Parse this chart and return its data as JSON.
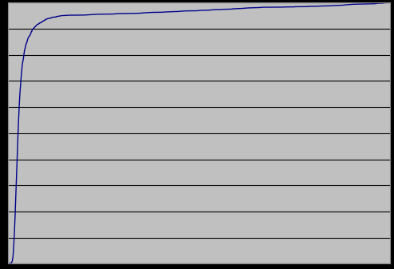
{
  "title": "",
  "xlabel": "",
  "ylabel": "",
  "xlim": [
    0,
    500
  ],
  "ylim": [
    0,
    1.0
  ],
  "background_color": "#c0c0c0",
  "figure_background": "#000000",
  "line_color": "#00008b",
  "line_width": 1.0,
  "grid_color": "#000000",
  "grid_linewidth": 0.8,
  "yticks": [
    0.0,
    0.1,
    0.2,
    0.3,
    0.4,
    0.5,
    0.6,
    0.7,
    0.8,
    0.9,
    1.0
  ],
  "xticks": []
}
